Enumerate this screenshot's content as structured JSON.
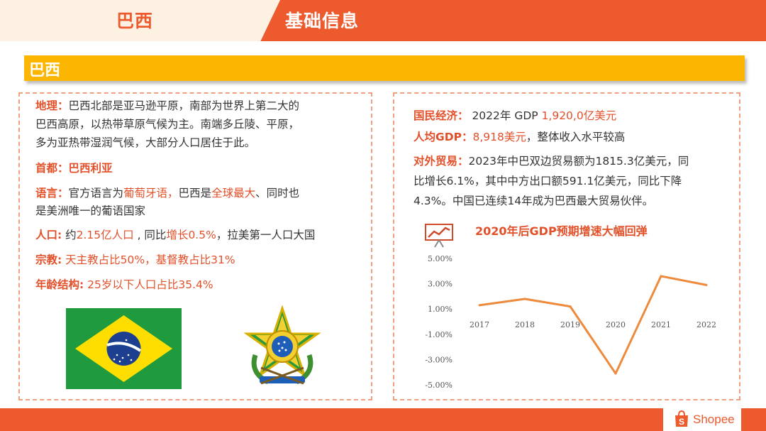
{
  "header": {
    "left_title": "巴西",
    "right_title": "基础信息"
  },
  "section": {
    "title": "巴西"
  },
  "left": {
    "geo_label": "地理：",
    "geo_line1": "巴西北部是亚马逊平原，南部为世界上第二大的",
    "geo_line2": "巴西高原，以热带草原气候为主。南端多丘陵、平原，",
    "geo_line3": "多为亚热带湿润气候，大部分人口居住于此。",
    "capital": "首都：巴西利亚",
    "lang_label": "语言：",
    "lang_t1": "官方语言为",
    "lang_em1": "葡萄牙语，",
    "lang_t2": "巴西是",
    "lang_em2": "全球最大",
    "lang_t3": "、同时也",
    "lang_line2": "是美洲唯一的葡语国家",
    "pop_label": "人口:",
    "pop_t1": " 约",
    "pop_em1": "2.15亿人口",
    "pop_t2": " , 同比",
    "pop_em2": "增长0.5%",
    "pop_t3": "，拉美第一人口大国",
    "rel_label": "宗教:",
    "rel_t1": " 天主教占比",
    "rel_em1": "50%",
    "rel_t2": "，基督教占比",
    "rel_em2": "31%",
    "age_label": "年龄结构:",
    "age_t1": " 25岁以下人口占比",
    "age_em1": "35.4%"
  },
  "right": {
    "econ_label": "国民经济：",
    "econ_t1": " 2022年 GDP ",
    "econ_em1": "1,920,0亿美元",
    "gdppc_label": "人均GDP：",
    "gdppc_em1": "8,918美元",
    "gdppc_t1": "，整体收入水平较高",
    "trade_label": "对外贸易：",
    "trade_t1": "2023年中巴双边贸易额为1815.3亿美元，同",
    "trade_line2": "比增长6.1%，其中中方出口额591.1亿美元，同比下降",
    "trade_line3": "4.3%。中国已连续14年成为巴西最大贸易伙伴。"
  },
  "chart_title": "2020年后GDP预期增速大幅回弹",
  "chart_data": {
    "type": "line",
    "title": "2020年后GDP预期增速大幅回弹",
    "x": [
      "2017",
      "2018",
      "2019",
      "2020",
      "2021",
      "2022"
    ],
    "series": [
      {
        "values": [
          1.3,
          1.8,
          1.2,
          -4.1,
          3.6,
          2.9
        ]
      }
    ],
    "ylim": [
      -5.0,
      5.0
    ],
    "yticks": [
      "5.00%",
      "3.00%",
      "1.00%",
      "-1.00%",
      "-3.00%",
      "-5.00%"
    ],
    "grid": false,
    "color": "#ee8a3c"
  },
  "logo": {
    "text": "Shopee"
  },
  "colors": {
    "primary": "#ec5a2e",
    "accent": "#fcb500",
    "text_highlight": "#e2502a"
  }
}
